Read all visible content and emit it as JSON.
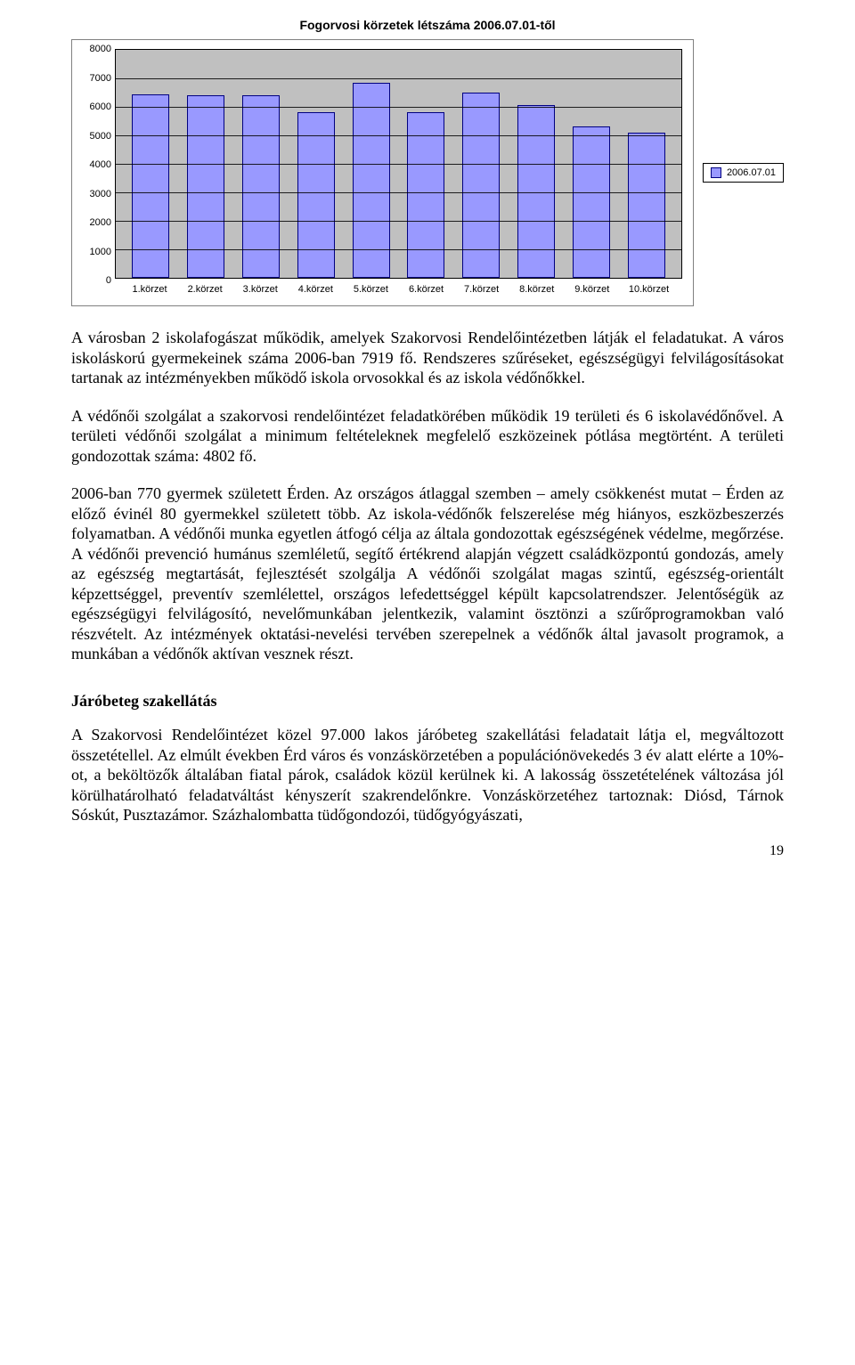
{
  "chart": {
    "title": "Fogorvosi körzetek létszáma 2006.07.01-től",
    "type": "bar",
    "categories": [
      "1.körzet",
      "2.körzet",
      "3.körzet",
      "4.körzet",
      "5.körzet",
      "6.körzet",
      "7.körzet",
      "8.körzet",
      "9.körzet",
      "10.körzet"
    ],
    "values": [
      6450,
      6400,
      6400,
      5800,
      6850,
      5800,
      6500,
      6050,
      5300,
      5100
    ],
    "ymin": 0,
    "ymax": 8000,
    "ytick_step": 1000,
    "bar_color": "#9999ff",
    "bar_border": "#000080",
    "plot_bg": "#c0c0c0",
    "grid_color": "#000000",
    "frame_border": "#808080",
    "legend_label": "2006.07.01",
    "title_fontsize": 14,
    "label_fontsize": 11
  },
  "paragraphs": {
    "p1": "A városban 2 iskolafogászat működik, amelyek Szakorvosi Rendelőintézetben látják el feladatukat. A város iskoláskorú gyermekeinek száma 2006-ban 7919 fő. Rendszeres szűréseket, egészségügyi felvilágosításokat tartanak az intézményekben működő iskola orvosokkal és az iskola védőnőkkel.",
    "p2": "A védőnői szolgálat a szakorvosi rendelőintézet feladatkörében működik 19 területi és 6 iskolavédőnővel. A területi védőnői szolgálat a minimum feltételeknek megfelelő eszközeinek pótlása megtörtént. A területi gondozottak száma: 4802 fő.",
    "p3": "2006-ban 770 gyermek született Érden. Az országos átlaggal szemben – amely csökkenést mutat – Érden az előző évinél 80 gyermekkel született több. Az iskola-védőnők felszerelése még hiányos, eszközbeszerzés folyamatban. A védőnői munka egyetlen átfogó célja az általa gondozottak egészségének védelme, megőrzése. A védőnői prevenció humánus szemléletű, segítő értékrend alapján végzett családközpontú gondozás, amely az egészség megtartását, fejlesztését szolgálja A védőnői szolgálat magas szintű, egészség-orientált képzettséggel, preventív szemlélettel, országos lefedettséggel képült kapcsolatrendszer. Jelentőségük az egészségügyi felvilágosító, nevelőmunkában jelentkezik, valamint ösztönzi a szűrőprogramokban való részvételt. Az intézmények oktatási-nevelési tervében szerepelnek a védőnők által javasolt programok, a munkában a védőnők aktívan vesznek részt."
  },
  "section": {
    "title": "Járóbeteg szakellátás",
    "p1": "A Szakorvosi Rendelőintézet közel 97.000 lakos járóbeteg szakellátási feladatait látja el, megváltozott összetétellel. Az elmúlt években Érd város és vonzáskörzetében a populációnövekedés 3 év alatt elérte a 10%-ot, a beköltözők általában fiatal párok, családok közül kerülnek ki. A lakosság összetételének változása jól körülhatárolható feladatváltást kényszerít szakrendelőnkre. Vonzáskörzetéhez tartoznak: Diósd, Tárnok Sóskút, Pusztazámor. Százhalombatta tüdőgondozói, tüdőgyógyászati,"
  },
  "page_number": "19"
}
